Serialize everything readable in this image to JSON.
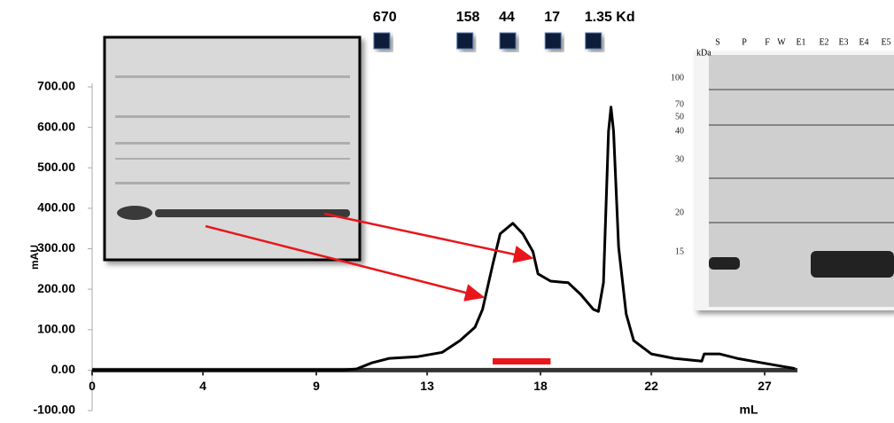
{
  "chart_data": {
    "type": "line",
    "color": "#000000",
    "x_label": "mL",
    "y_label": "mAU",
    "x": [
      0,
      5,
      10,
      10.5,
      11.1,
      11.8,
      12.9,
      13.9,
      14.6,
      15.2,
      15.5,
      15.9,
      16.2,
      16.7,
      17.1,
      17.5,
      17.7,
      18.2,
      18.9,
      19.4,
      19.9,
      20.1,
      20.3,
      20.5,
      20.6,
      20.7,
      20.9,
      21.2,
      21.5,
      22.2,
      23.1,
      24.2,
      24.3,
      24.9,
      25.6,
      26.6,
      27.9
    ],
    "values": [
      0,
      0,
      0,
      3,
      18,
      29,
      33,
      44,
      73,
      106,
      150,
      260,
      337,
      363,
      337,
      293,
      238,
      220,
      216,
      187,
      150,
      145,
      216,
      590,
      650,
      590,
      304,
      139,
      73,
      40,
      29,
      22,
      40,
      40,
      29,
      18,
      4
    ],
    "xlim": [
      0,
      28
    ],
    "ylim": [
      -100,
      700
    ],
    "xticks": [
      {
        "value": 0,
        "label": "0"
      },
      {
        "value": 4.4,
        "label": "4"
      },
      {
        "value": 8.9,
        "label": "9"
      },
      {
        "value": 13.3,
        "label": "13"
      },
      {
        "value": 17.8,
        "label": "18"
      },
      {
        "value": 22.2,
        "label": "22"
      },
      {
        "value": 26.7,
        "label": "27"
      }
    ],
    "yticks": [
      {
        "value": -100,
        "label": "-100.00"
      },
      {
        "value": 0,
        "label": "0.00"
      },
      {
        "value": 100,
        "label": "100.00"
      },
      {
        "value": 200,
        "label": "200.00"
      },
      {
        "value": 300,
        "label": "300.00"
      },
      {
        "value": 400,
        "label": "400.00"
      },
      {
        "value": 500,
        "label": "500.00"
      },
      {
        "value": 600,
        "label": "600.00"
      },
      {
        "value": 700,
        "label": "700.00"
      }
    ],
    "markers": [
      {
        "label": "670",
        "x": 11.5
      },
      {
        "label": "158",
        "x": 14.8
      },
      {
        "label": "44",
        "x": 16.5
      },
      {
        "label": "17",
        "x": 18.3
      },
      {
        "label": "1.35 Kd",
        "x": 19.9
      }
    ],
    "fraction": [
      15.9,
      18.2
    ],
    "gel_unit": "kDa",
    "gel_lanes": [
      "S",
      "P",
      "F",
      "W",
      "E1",
      "E2",
      "E3",
      "E4",
      "E5"
    ],
    "gel_ladder": [
      "100",
      "70",
      "50",
      "40",
      "30",
      "20",
      "15"
    ]
  }
}
